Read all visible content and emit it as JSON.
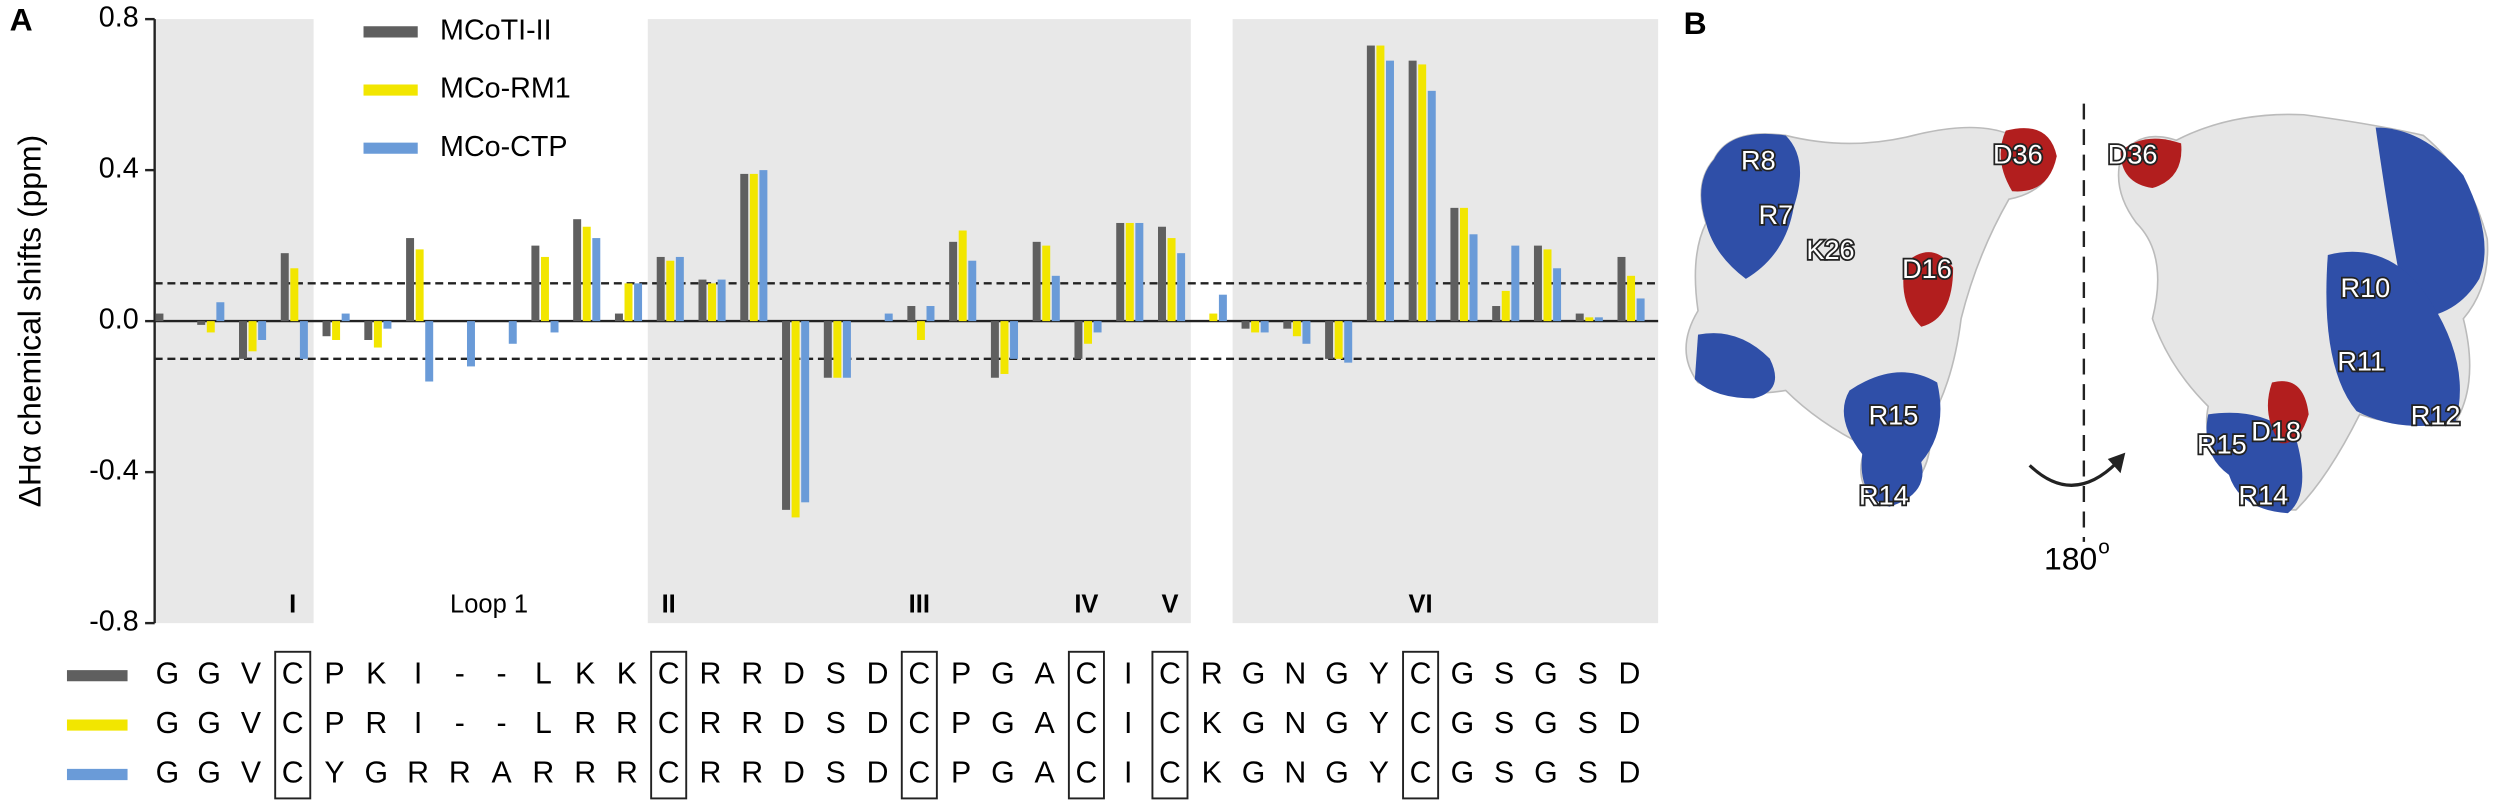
{
  "panel_a_label": "A",
  "panel_b_label": "B",
  "chart_data": {
    "type": "bar",
    "y_label": "ΔHα chemical shifts (ppm)",
    "ylim": [
      -0.8,
      0.8
    ],
    "yticks": [
      0.8,
      0.4,
      {
        "value": 0,
        "label": "0.0"
      },
      -0.4,
      -0.8
    ],
    "reference_lines": [
      0.1,
      -0.1
    ],
    "region_labels": [
      "I",
      "Loop 1",
      "II",
      "III",
      "IV",
      "V",
      "VI"
    ],
    "series": [
      {
        "name": "MCoTI-II",
        "color": "#5f5f5f",
        "values": [
          0.02,
          -0.01,
          -0.1,
          0.18,
          -0.04,
          -0.05,
          0.22,
          null,
          null,
          0.2,
          0.27,
          0.02,
          0.17,
          0.11,
          0.39,
          -0.5,
          -0.15,
          null,
          0.04,
          0.21,
          -0.15,
          0.21,
          -0.1,
          0.26,
          0.25,
          null,
          -0.02,
          -0.02,
          -0.1,
          0.73,
          0.69,
          0.3,
          0.04,
          0.2,
          0.02,
          0.17
        ]
      },
      {
        "name": "MCo-RM1",
        "color": "#f2e600",
        "values": [
          null,
          -0.03,
          -0.08,
          0.14,
          -0.05,
          -0.07,
          0.19,
          null,
          null,
          0.17,
          0.25,
          0.1,
          0.16,
          0.1,
          0.39,
          -0.52,
          -0.15,
          null,
          -0.05,
          0.24,
          -0.14,
          0.2,
          -0.06,
          0.26,
          0.22,
          0.02,
          -0.03,
          -0.04,
          -0.1,
          0.73,
          0.68,
          0.3,
          0.08,
          0.19,
          0.01,
          0.12
        ]
      },
      {
        "name": "MCo-CTP",
        "color": "#6a9bd8",
        "values": [
          null,
          0.05,
          -0.05,
          -0.1,
          0.02,
          -0.02,
          -0.16,
          -0.12,
          -0.06,
          -0.03,
          0.22,
          0.1,
          0.17,
          0.11,
          0.4,
          -0.48,
          -0.15,
          0.02,
          0.04,
          0.16,
          -0.1,
          0.12,
          -0.03,
          0.26,
          0.18,
          0.07,
          -0.03,
          -0.06,
          -0.11,
          0.69,
          0.61,
          0.23,
          0.2,
          0.14,
          0.01,
          0.06
        ]
      }
    ],
    "alignment": [
      [
        "G",
        "G",
        "V",
        "C",
        "P",
        "K",
        "I",
        "-",
        "-",
        "L",
        "K",
        "K",
        "C",
        "R",
        "R",
        "D",
        "S",
        "D",
        "C",
        "P",
        "G",
        "A",
        "C",
        "I",
        "C",
        "R",
        "G",
        "N",
        "G",
        "Y",
        "C",
        "G",
        "S",
        "G",
        "S",
        "D"
      ],
      [
        "G",
        "G",
        "V",
        "C",
        "P",
        "R",
        "I",
        "-",
        "-",
        "L",
        "R",
        "R",
        "C",
        "R",
        "R",
        "D",
        "S",
        "D",
        "C",
        "P",
        "G",
        "A",
        "C",
        "I",
        "C",
        "K",
        "G",
        "N",
        "G",
        "Y",
        "C",
        "G",
        "S",
        "G",
        "S",
        "D"
      ],
      [
        "G",
        "G",
        "V",
        "C",
        "Y",
        "G",
        "R",
        "R",
        "A",
        "R",
        "R",
        "R",
        "C",
        "R",
        "R",
        "D",
        "S",
        "D",
        "C",
        "P",
        "G",
        "A",
        "C",
        "I",
        "C",
        "K",
        "G",
        "N",
        "G",
        "Y",
        "C",
        "G",
        "S",
        "G",
        "S",
        "D"
      ]
    ]
  },
  "structure": {
    "left_labels": [
      "R8",
      "R7",
      "K26",
      "D36",
      "D16",
      "R15",
      "R14"
    ],
    "right_labels": [
      "D36",
      "R10",
      "R11",
      "D18",
      "R15",
      "R12",
      "R14"
    ],
    "rotation": "180",
    "rotation_unit": "o"
  }
}
